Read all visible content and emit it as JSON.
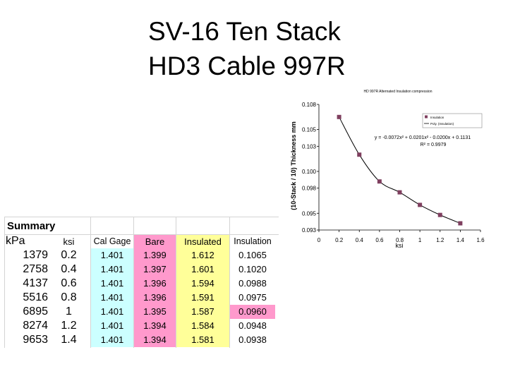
{
  "slide": {
    "title_line1": "SV-16 Ten Stack",
    "title_line2": "HD3 Cable 997R"
  },
  "table": {
    "summary_label": "Summary",
    "headers": [
      "kPa",
      "ksi",
      "Cal Gage",
      "Bare",
      "Insulated",
      "Insulation"
    ],
    "rows": [
      [
        "1379",
        "0.2",
        "1.401",
        "1.399",
        "1.612",
        "0.1065"
      ],
      [
        "2758",
        "0.4",
        "1.401",
        "1.397",
        "1.601",
        "0.1020"
      ],
      [
        "4137",
        "0.6",
        "1.401",
        "1.396",
        "1.594",
        "0.0988"
      ],
      [
        "5516",
        "0.8",
        "1.401",
        "1.396",
        "1.591",
        "0.0975"
      ],
      [
        "6895",
        "1",
        "1.401",
        "1.395",
        "1.587",
        "0.0960"
      ],
      [
        "8274",
        "1.2",
        "1.401",
        "1.394",
        "1.584",
        "0.0948"
      ],
      [
        "9653",
        "1.4",
        "1.401",
        "1.394",
        "1.581",
        "0.0938"
      ]
    ],
    "column_colors": {
      "cal_gage": "#ccffff",
      "bare": "#ff99cc",
      "insulated": "#ffff99",
      "insulation_highlight": "#ff99cc"
    },
    "highlight_row": 4
  },
  "chart_data": {
    "type": "scatter",
    "title": "HD 997R  Alternated Insulation compression",
    "xlabel": "ksi",
    "ylabel": "(10-Stack / 10) Thickness mm",
    "xlim": [
      0,
      1.6
    ],
    "ylim": [
      0.093,
      0.108
    ],
    "x_ticks": [
      "0",
      "0.2",
      "0.4",
      "0.6",
      "0.8",
      "1",
      "1.2",
      "1.4",
      "1.6"
    ],
    "y_ticks": [
      "0.093",
      "0.095",
      "0.098",
      "0.100",
      "0.103",
      "0.105",
      "0.108"
    ],
    "series": [
      {
        "name": "Insulation",
        "color": "#7f3f5f",
        "x": [
          0.2,
          0.4,
          0.6,
          0.8,
          1.0,
          1.2,
          1.4
        ],
        "y": [
          0.1065,
          0.102,
          0.0988,
          0.0975,
          0.096,
          0.0948,
          0.0938
        ]
      }
    ],
    "trendline": {
      "name": "Poly. (Insulation)",
      "type": "polynomial-2",
      "color": "#000000"
    },
    "equation": "y = -0.0072x² + 0.0201x² - 0.0200x + 0.1131",
    "r_squared": "R² = 0.9979",
    "legend": "top-right"
  }
}
